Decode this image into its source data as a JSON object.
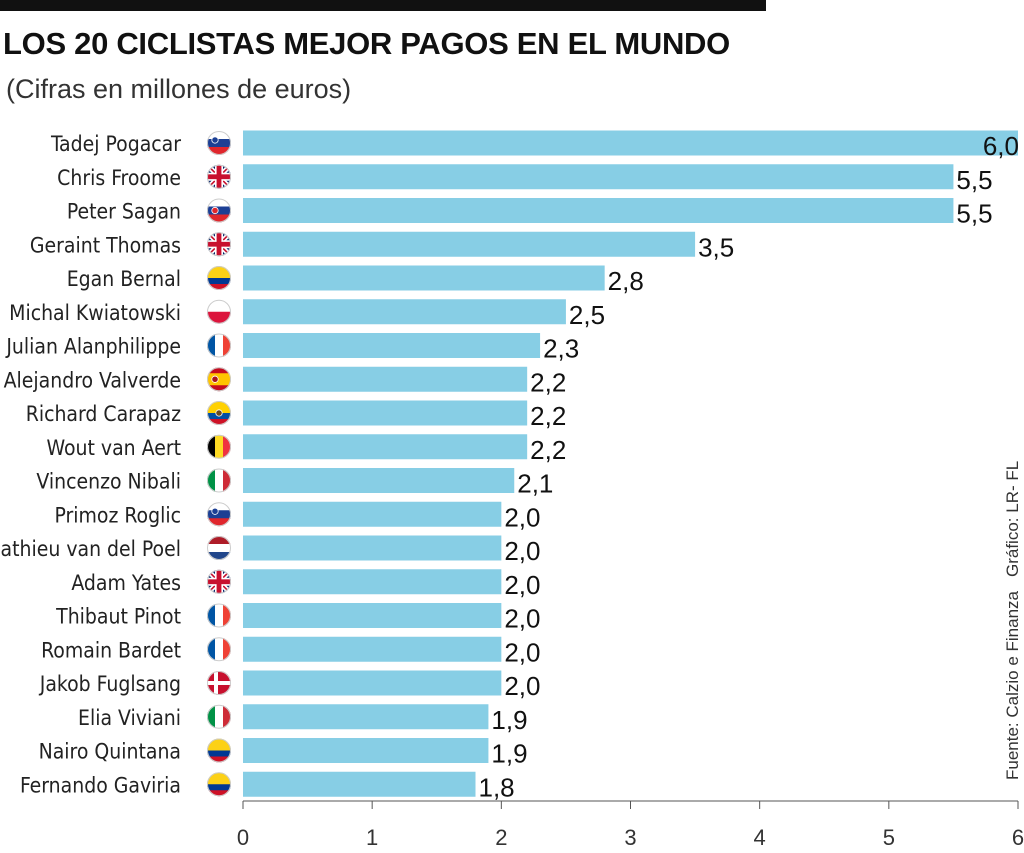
{
  "title": "LOS 20 CICLISTAS MEJOR PAGOS EN EL MUNDO",
  "subtitle": "(Cifras en millones de euros)",
  "source": "Fuente: Calzio e Finanza",
  "credit": "Gráfico: LR- FL",
  "colors": {
    "bar": "#87cee5",
    "text": "#111111",
    "topbar": "#111111"
  },
  "chart_data": {
    "type": "bar",
    "orientation": "horizontal",
    "categories": [
      "Tadej Pogacar",
      "Chris Froome",
      "Peter Sagan",
      "Geraint Thomas",
      "Egan Bernal",
      "Michal Kwiatowski",
      "Julian Alanphilippe",
      "Alejandro Valverde",
      "Richard Carapaz",
      "Wout van Aert",
      "Vincenzo Nibali",
      "Primoz Roglic",
      "Mathieu van del Poel",
      "Adam Yates",
      "Thibaut Pinot",
      "Romain Bardet",
      "Jakob Fuglsang",
      "Elia Viviani",
      "Nairo Quintana",
      "Fernando Gaviria"
    ],
    "flags": [
      "slovenia",
      "uk",
      "slovakia",
      "uk",
      "colombia",
      "poland",
      "france",
      "spain",
      "ecuador",
      "belgium",
      "italy",
      "slovenia",
      "netherlands",
      "uk",
      "france",
      "france",
      "denmark",
      "italy",
      "colombia",
      "colombia"
    ],
    "values": [
      6.0,
      5.5,
      5.5,
      3.5,
      2.8,
      2.5,
      2.3,
      2.2,
      2.2,
      2.2,
      2.1,
      2.0,
      2.0,
      2.0,
      2.0,
      2.0,
      2.0,
      1.9,
      1.9,
      1.8
    ],
    "value_labels": [
      "6,0",
      "5,5",
      "5,5",
      "3,5",
      "2,8",
      "2,5",
      "2,3",
      "2,2",
      "2,2",
      "2,2",
      "2,1",
      "2,0",
      "2,0",
      "2,0",
      "2,0",
      "2,0",
      "2,0",
      "1,9",
      "1,9",
      "1,8"
    ],
    "xlim": [
      0,
      6
    ],
    "xticks": [
      "0",
      "1",
      "2",
      "3",
      "4",
      "5",
      "6"
    ],
    "grid": false,
    "legend": "none"
  }
}
